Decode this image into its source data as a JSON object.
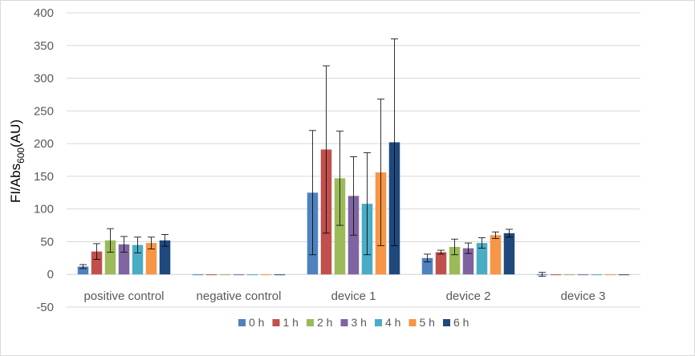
{
  "chart_data": {
    "type": "bar",
    "title": "",
    "ylabel": {
      "main": "FI/Abs",
      "sub": "600",
      "unit": "(AU)"
    },
    "xlabel": "",
    "ylim": [
      -50,
      400
    ],
    "yticks": [
      -50,
      0,
      50,
      100,
      150,
      200,
      250,
      300,
      350,
      400
    ],
    "grid": true,
    "legend_position": "bottom",
    "categories": [
      "positive control",
      "negative control",
      "device 1",
      "device 2",
      "device 3"
    ],
    "series": [
      {
        "name": "0 h",
        "color": "#4f81bd",
        "values": [
          12,
          0,
          125,
          25,
          0
        ],
        "errors": [
          3,
          0,
          95,
          6,
          3
        ]
      },
      {
        "name": "1 h",
        "color": "#c0504d",
        "values": [
          35,
          0,
          191,
          34,
          0
        ],
        "errors": [
          12,
          0,
          128,
          3,
          0
        ]
      },
      {
        "name": "2 h",
        "color": "#9bbb59",
        "values": [
          52,
          0,
          147,
          42,
          0
        ],
        "errors": [
          18,
          0,
          72,
          12,
          0
        ]
      },
      {
        "name": "3 h",
        "color": "#8064a2",
        "values": [
          46,
          0,
          120,
          40,
          0
        ],
        "errors": [
          12,
          0,
          60,
          8,
          0
        ]
      },
      {
        "name": "4 h",
        "color": "#4bacc6",
        "values": [
          45,
          0,
          108,
          48,
          0
        ],
        "errors": [
          12,
          0,
          78,
          8,
          0
        ]
      },
      {
        "name": "5 h",
        "color": "#f79646",
        "values": [
          48,
          0,
          156,
          60,
          0
        ],
        "errors": [
          9,
          0,
          112,
          5,
          0
        ]
      },
      {
        "name": "6 h",
        "color": "#1f497d",
        "values": [
          52,
          0,
          202,
          63,
          0
        ],
        "errors": [
          9,
          0,
          158,
          6,
          0
        ]
      }
    ]
  }
}
